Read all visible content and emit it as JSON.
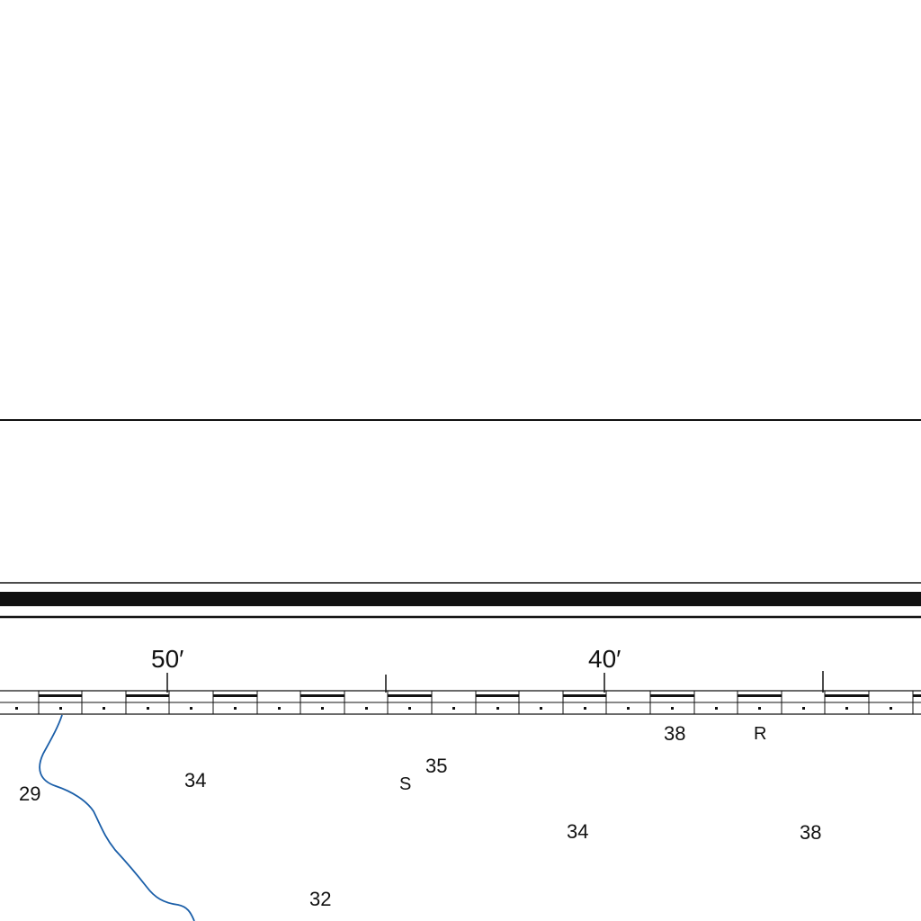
{
  "map": {
    "longitude_minutes": {
      "left": "50′",
      "right": "40′"
    },
    "soundings": [
      {
        "id": "s1",
        "value": "29"
      },
      {
        "id": "s2",
        "value": "34"
      },
      {
        "id": "s3",
        "value": "35"
      },
      {
        "id": "s4",
        "value": "38"
      },
      {
        "id": "s5",
        "value": "34"
      },
      {
        "id": "s6",
        "value": "38"
      },
      {
        "id": "s7",
        "value": "32"
      }
    ],
    "bottom_codes": [
      {
        "id": "b1",
        "value": "S"
      },
      {
        "id": "b2",
        "value": "R"
      }
    ]
  },
  "colors": {
    "line": "#111111",
    "contour": "#1a5ea8",
    "background": "#ffffff"
  }
}
